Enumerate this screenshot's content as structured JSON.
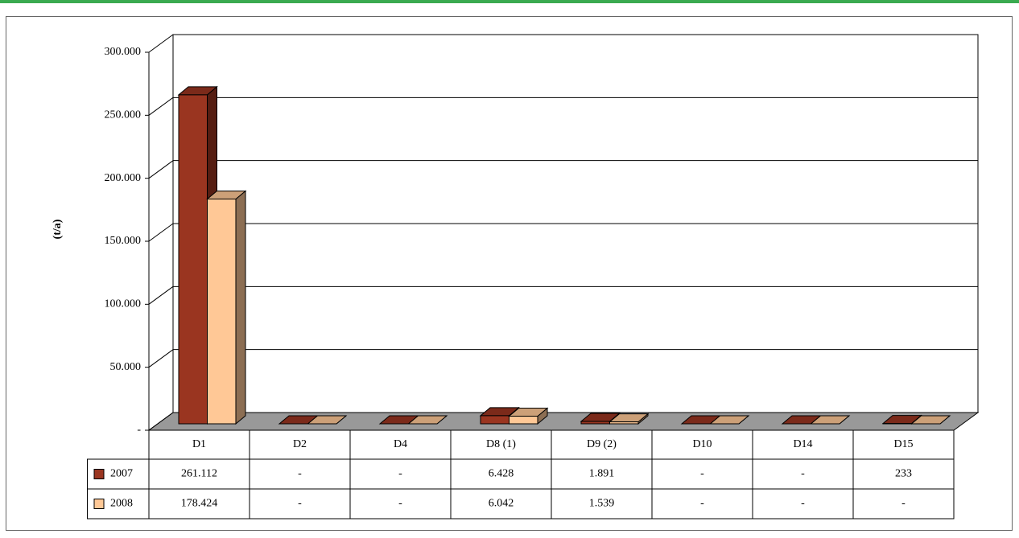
{
  "chart_data": {
    "type": "bar3d",
    "y_label": "(t/a)",
    "categories": [
      "D1",
      "D2",
      "D4",
      "D8 (1)",
      "D9 (2)",
      "D10",
      "D14",
      "D15"
    ],
    "series": [
      {
        "name": "2007",
        "color": "#9a3520",
        "values": [
          261112,
          0,
          0,
          6428,
          1891,
          0,
          0,
          233
        ],
        "value_labels": [
          "261.112",
          "-",
          "-",
          "6.428",
          "1.891",
          "-",
          "-",
          "233"
        ]
      },
      {
        "name": "2008",
        "color": "#ffc896",
        "values": [
          178424,
          0,
          0,
          6042,
          1539,
          0,
          0,
          0
        ],
        "value_labels": [
          "178.424",
          "-",
          "-",
          "6.042",
          "1.539",
          "-",
          "-",
          "-"
        ]
      }
    ],
    "ylim": [
      0,
      300000
    ],
    "yticks": [
      {
        "value": 0,
        "label": "-"
      },
      {
        "value": 50000,
        "label": "50.000"
      },
      {
        "value": 100000,
        "label": "100.000"
      },
      {
        "value": 150000,
        "label": "150.000"
      },
      {
        "value": 200000,
        "label": "200.000"
      },
      {
        "value": 250000,
        "label": "250.000"
      },
      {
        "value": 300000,
        "label": "300.000"
      }
    ],
    "grid": true
  }
}
